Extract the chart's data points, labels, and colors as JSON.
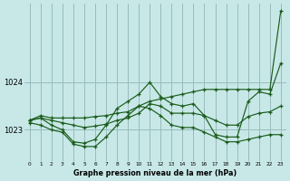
{
  "xlabel": "Graphe pression niveau de la mer (hPa)",
  "xlim": [
    -0.5,
    23.5
  ],
  "ylim": [
    1022.35,
    1025.65
  ],
  "yticks": [
    1023,
    1024
  ],
  "xticks": [
    0,
    1,
    2,
    3,
    4,
    5,
    6,
    7,
    8,
    9,
    10,
    11,
    12,
    13,
    14,
    15,
    16,
    17,
    18,
    19,
    20,
    21,
    22,
    23
  ],
  "bg_color": "#c8e8e8",
  "grid_color": "#99bbbb",
  "line_color": "#1a5c1a",
  "series": [
    [
      1023.2,
      1023.3,
      1023.25,
      1023.25,
      1023.25,
      1023.25,
      1023.28,
      1023.3,
      1023.35,
      1023.38,
      1023.5,
      1023.6,
      1023.65,
      1023.7,
      1023.75,
      1023.8,
      1023.85,
      1023.85,
      1023.85,
      1023.85,
      1023.85,
      1023.85,
      1023.85,
      1025.5
    ],
    [
      1023.2,
      1023.25,
      1023.1,
      1023.0,
      1022.75,
      1022.72,
      1022.8,
      1023.1,
      1023.45,
      1023.6,
      1023.75,
      1024.0,
      1023.7,
      1023.55,
      1023.5,
      1023.55,
      1023.3,
      1022.9,
      1022.85,
      1022.85,
      1023.6,
      1023.8,
      1023.75,
      1024.4
    ],
    [
      1023.15,
      1023.1,
      1023.0,
      1022.95,
      1022.7,
      1022.65,
      1022.65,
      1022.85,
      1023.1,
      1023.3,
      1023.5,
      1023.45,
      1023.3,
      1023.1,
      1023.05,
      1023.05,
      1022.95,
      1022.85,
      1022.75,
      1022.75,
      1022.8,
      1022.85,
      1022.9,
      1022.9
    ],
    [
      1023.2,
      1023.25,
      1023.2,
      1023.15,
      1023.1,
      1023.05,
      1023.08,
      1023.12,
      1023.2,
      1023.25,
      1023.35,
      1023.55,
      1023.5,
      1023.35,
      1023.35,
      1023.35,
      1023.3,
      1023.2,
      1023.1,
      1023.1,
      1023.28,
      1023.35,
      1023.38,
      1023.5
    ]
  ]
}
